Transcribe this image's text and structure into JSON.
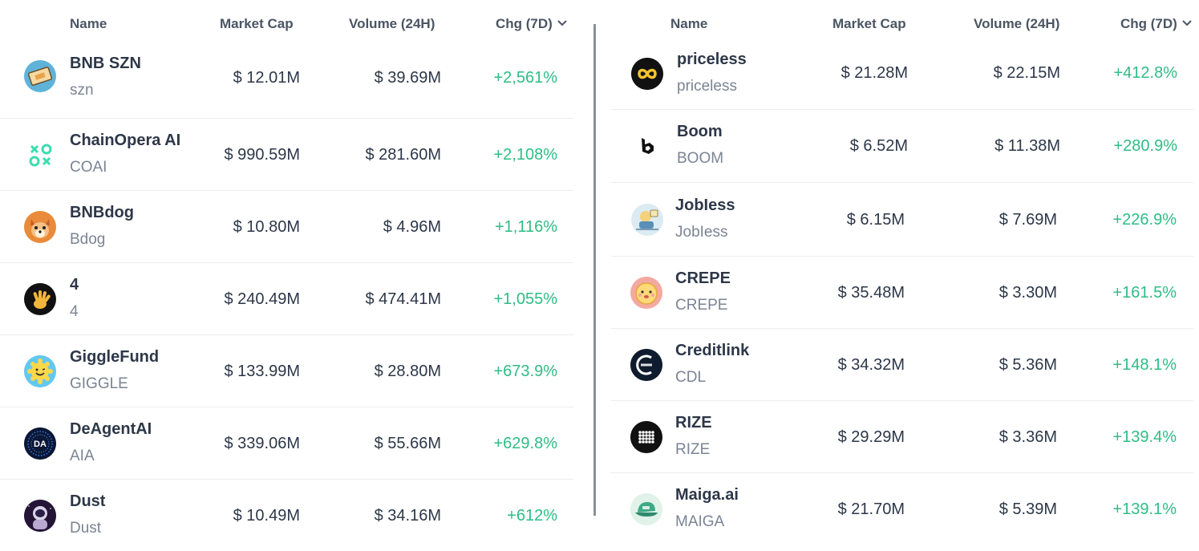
{
  "left": {
    "columns": {
      "name": "Name",
      "market_cap": "Market Cap",
      "volume": "Volume (24H)",
      "change": "Chg (7D)"
    },
    "rows": [
      {
        "name": "BNB SZN",
        "symbol": "szn",
        "market_cap": "$ 12.01M",
        "volume": "$ 39.69M",
        "change": "+2,561%"
      },
      {
        "name": "ChainOpera AI",
        "symbol": "COAI",
        "market_cap": "$ 990.59M",
        "volume": "$ 281.60M",
        "change": "+2,108%"
      },
      {
        "name": "BNBdog",
        "symbol": "Bdog",
        "market_cap": "$ 10.80M",
        "volume": "$ 4.96M",
        "change": "+1,116%"
      },
      {
        "name": "4",
        "symbol": "4",
        "market_cap": "$ 240.49M",
        "volume": "$ 474.41M",
        "change": "+1,055%"
      },
      {
        "name": "GiggleFund",
        "symbol": "GIGGLE",
        "market_cap": "$ 133.99M",
        "volume": "$ 28.80M",
        "change": "+673.9%"
      },
      {
        "name": "DeAgentAI",
        "symbol": "AIA",
        "market_cap": "$ 339.06M",
        "volume": "$ 55.66M",
        "change": "+629.8%"
      },
      {
        "name": "Dust",
        "symbol": "Dust",
        "market_cap": "$ 10.49M",
        "volume": "$ 34.16M",
        "change": "+612%"
      }
    ]
  },
  "right": {
    "columns": {
      "name": "Name",
      "market_cap": "Market Cap",
      "volume": "Volume (24H)",
      "change": "Chg (7D)"
    },
    "rows": [
      {
        "name": "priceless",
        "symbol": "priceless",
        "market_cap": "$ 21.28M",
        "volume": "$ 22.15M",
        "change": "+412.8%"
      },
      {
        "name": "Boom",
        "symbol": "BOOM",
        "market_cap": "$ 6.52M",
        "volume": "$ 11.38M",
        "change": "+280.9%"
      },
      {
        "name": "JobIess",
        "symbol": "JobIess",
        "market_cap": "$ 6.15M",
        "volume": "$ 7.69M",
        "change": "+226.9%"
      },
      {
        "name": "CREPE",
        "symbol": "CREPE",
        "market_cap": "$ 35.48M",
        "volume": "$ 3.30M",
        "change": "+161.5%"
      },
      {
        "name": "Creditlink",
        "symbol": "CDL",
        "market_cap": "$ 34.32M",
        "volume": "$ 5.36M",
        "change": "+148.1%"
      },
      {
        "name": "RIZE",
        "symbol": "RIZE",
        "market_cap": "$ 29.29M",
        "volume": "$ 3.36M",
        "change": "+139.4%"
      },
      {
        "name": "Maiga.ai",
        "symbol": "MAIGA",
        "market_cap": "$ 21.70M",
        "volume": "$ 5.39M",
        "change": "+139.1%"
      }
    ]
  },
  "colors": {
    "positive": "#2ebd85",
    "header": "#4b5563",
    "divider": "#8a8f96"
  },
  "icons": [
    "ticket-icon",
    "coai-logo-icon",
    "shiba-dog-icon",
    "four-hand-icon",
    "smiley-sun-icon",
    "deagent-da-icon",
    "astronaut-icon",
    "infinity-icon",
    "boom-b-icon",
    "cartoon-character-icon",
    "crepe-face-icon",
    "creditlink-logo-icon",
    "rize-dots-icon",
    "green-cap-icon"
  ]
}
